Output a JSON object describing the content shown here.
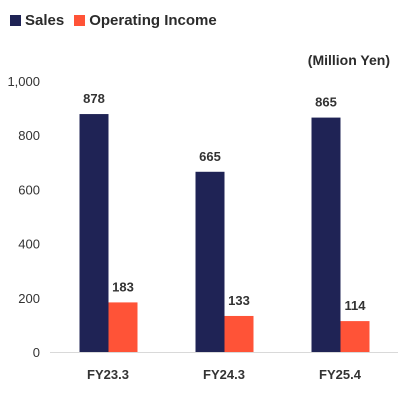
{
  "chart_data": {
    "type": "bar",
    "categories": [
      "FY23.3",
      "FY24.3",
      "FY25.4"
    ],
    "series": [
      {
        "name": "Sales",
        "values": [
          878,
          665,
          865
        ],
        "color": "#1f2355"
      },
      {
        "name": "Operating Income",
        "values": [
          183,
          133,
          114
        ],
        "color": "#ff5337"
      }
    ],
    "ylim": [
      0,
      1000
    ],
    "yticks": [
      0,
      200,
      400,
      600,
      800,
      1000
    ],
    "ytick_labels": [
      "0",
      "200",
      "400",
      "600",
      "800",
      "1,000"
    ],
    "unit_label": "(Million Yen)",
    "grid": false,
    "legend_position": "top-left"
  }
}
